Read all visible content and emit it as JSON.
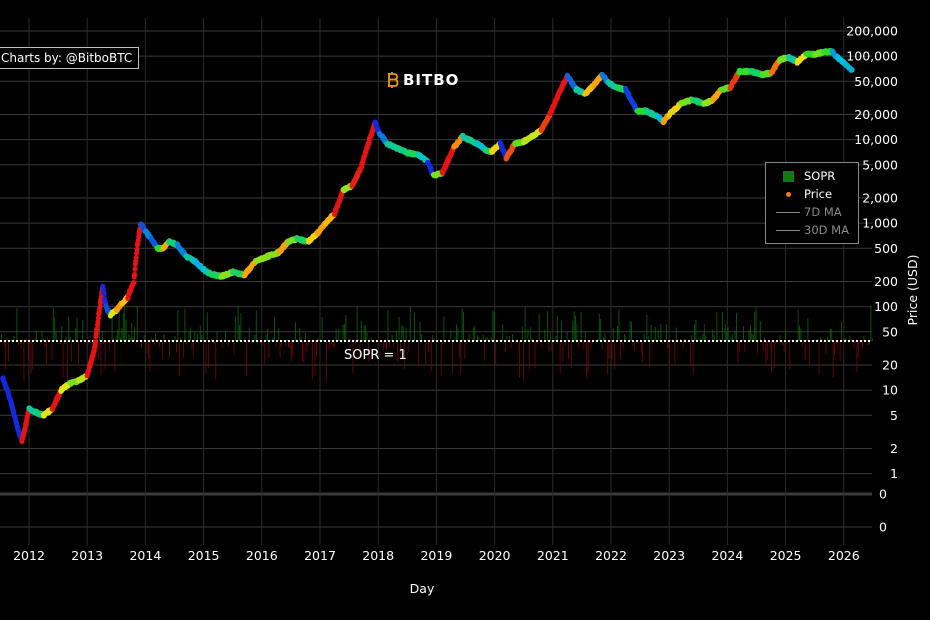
{
  "credit": "Charts by: @BitboBTC",
  "brand": {
    "name": "BITBO",
    "color": "#f7931a"
  },
  "sopr_line_label": "SOPR = 1",
  "legend": {
    "position": "right",
    "items": [
      {
        "label": "SOPR",
        "muted": false
      },
      {
        "label": "Price",
        "muted": false
      },
      {
        "label": "7D MA",
        "muted": true
      },
      {
        "label": "30D MA",
        "muted": true
      }
    ]
  },
  "chart_data": {
    "type": "scatter",
    "title": "",
    "xlabel": "Day",
    "ylabel": "Price (USD)",
    "xlim": [
      2011.55,
      2026.5
    ],
    "yscale": "log",
    "x_ticks": [
      "2012",
      "2013",
      "2014",
      "2015",
      "2016",
      "2017",
      "2018",
      "2019",
      "2020",
      "2021",
      "2022",
      "2023",
      "2024",
      "2025",
      "2026"
    ],
    "y_ticks_upper": [
      {
        "label": "200,000",
        "value": 200000
      },
      {
        "label": "100,000",
        "value": 100000
      },
      {
        "label": "50,000",
        "value": 50000
      },
      {
        "label": "20,000",
        "value": 20000
      },
      {
        "label": "10,000",
        "value": 10000
      },
      {
        "label": "5,000",
        "value": 5000
      },
      {
        "label": "2,000",
        "value": 2000
      },
      {
        "label": "1,000",
        "value": 1000
      },
      {
        "label": "500",
        "value": 500
      },
      {
        "label": "200",
        "value": 200
      },
      {
        "label": "100",
        "value": 100
      },
      {
        "label": "50",
        "value": 50
      },
      {
        "label": "20",
        "value": 20
      },
      {
        "label": "10",
        "value": 10
      },
      {
        "label": "5",
        "value": 5
      },
      {
        "label": "2",
        "value": 2
      },
      {
        "label": "1",
        "value": 1
      }
    ],
    "y_ticks_lower": [
      {
        "label": "0"
      },
      {
        "label": "0"
      }
    ],
    "grid": true,
    "sopr_reference": 1,
    "series": [
      {
        "name": "Price",
        "color_scale": "SOPR-colored (blue low → green → yellow → red high)",
        "x": [
          2011.55,
          2011.65,
          2011.75,
          2011.83,
          2011.88,
          2011.95,
          2012.0,
          2012.1,
          2012.25,
          2012.4,
          2012.55,
          2012.7,
          2012.85,
          2013.0,
          2013.12,
          2013.2,
          2013.27,
          2013.32,
          2013.4,
          2013.5,
          2013.6,
          2013.7,
          2013.8,
          2013.87,
          2013.92,
          2014.0,
          2014.1,
          2014.2,
          2014.3,
          2014.4,
          2014.55,
          2014.7,
          2014.85,
          2015.0,
          2015.1,
          2015.3,
          2015.5,
          2015.7,
          2015.9,
          2016.1,
          2016.3,
          2016.45,
          2016.6,
          2016.8,
          2016.95,
          2017.1,
          2017.25,
          2017.4,
          2017.55,
          2017.7,
          2017.85,
          2017.95,
          2018.02,
          2018.15,
          2018.3,
          2018.5,
          2018.7,
          2018.85,
          2018.95,
          2019.1,
          2019.3,
          2019.45,
          2019.55,
          2019.7,
          2019.85,
          2019.95,
          2020.1,
          2020.2,
          2020.35,
          2020.5,
          2020.65,
          2020.8,
          2020.95,
          2021.1,
          2021.25,
          2021.4,
          2021.55,
          2021.7,
          2021.85,
          2021.95,
          2022.1,
          2022.25,
          2022.45,
          2022.6,
          2022.8,
          2022.9,
          2023.0,
          2023.2,
          2023.4,
          2023.6,
          2023.75,
          2023.9,
          2024.05,
          2024.2,
          2024.4,
          2024.6,
          2024.75,
          2024.9,
          2025.05,
          2025.2,
          2025.35,
          2025.5,
          2025.65,
          2025.8,
          2025.9,
          2026.05,
          2026.15
        ],
        "y": [
          14,
          9,
          5,
          3,
          2.5,
          4,
          6,
          5.5,
          5,
          6,
          10,
          12,
          13,
          15,
          30,
          80,
          180,
          100,
          80,
          90,
          110,
          130,
          200,
          600,
          1000,
          800,
          650,
          500,
          500,
          600,
          550,
          400,
          350,
          280,
          250,
          230,
          260,
          240,
          350,
          400,
          450,
          600,
          650,
          600,
          750,
          1000,
          1300,
          2500,
          2800,
          4500,
          10000,
          16000,
          12000,
          9000,
          8000,
          7000,
          6500,
          5500,
          3700,
          4000,
          8000,
          11000,
          10000,
          9000,
          7500,
          7200,
          9000,
          6000,
          9000,
          9500,
          11000,
          13000,
          20000,
          35000,
          58000,
          40000,
          35000,
          45000,
          60000,
          48000,
          42000,
          40000,
          22000,
          22000,
          19000,
          16500,
          20000,
          27000,
          30000,
          27000,
          30000,
          40000,
          42000,
          65000,
          66000,
          60000,
          63000,
          90000,
          97000,
          85000,
          105000,
          105000,
          112000,
          113000,
          95000,
          78000,
          67000
        ]
      }
    ]
  }
}
